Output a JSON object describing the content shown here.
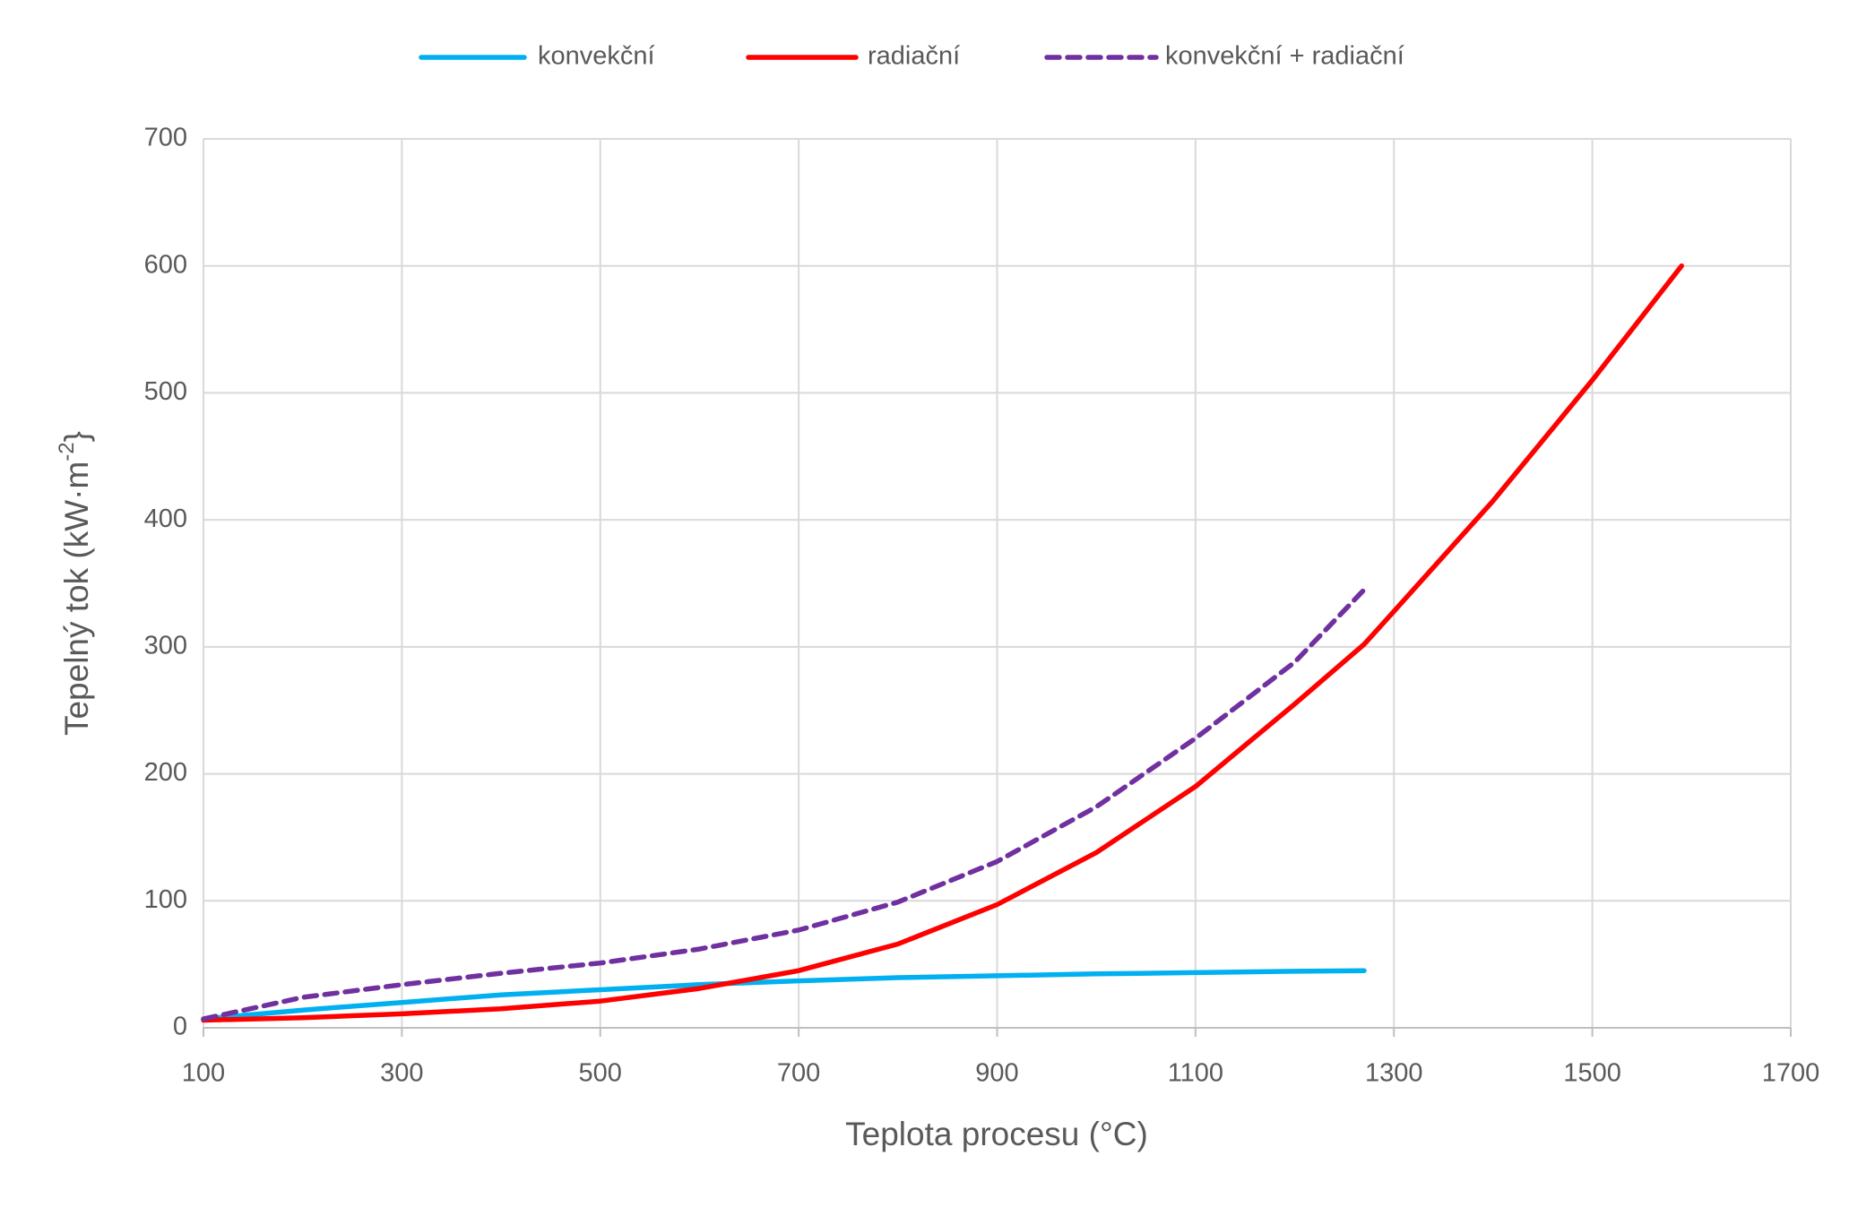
{
  "chart_data": {
    "type": "line",
    "x_label": "Teplota procesu (°C)",
    "y_label": {
      "text": "Tepelný tok (kW·m",
      "superscript": "-2",
      "suffix": "}"
    },
    "x": [
      100,
      200,
      300,
      400,
      500,
      600,
      700,
      800,
      900,
      1000,
      1100,
      1200,
      1270,
      1300,
      1400,
      1500,
      1590
    ],
    "series": [
      {
        "name": "konvekční",
        "color": "#00b0f0",
        "dash": false,
        "values": [
          7,
          14,
          20,
          26,
          30,
          34,
          37,
          39.5,
          41,
          42.5,
          43.5,
          44.5,
          45,
          null,
          null,
          null,
          null
        ]
      },
      {
        "name": "radiační",
        "color": "#ff0000",
        "dash": false,
        "values": [
          6,
          8,
          11,
          15,
          21,
          31,
          45,
          66,
          97,
          138,
          190,
          255,
          302,
          328,
          415,
          510,
          600
        ]
      },
      {
        "name": "konvekční + radiační",
        "color": "#7030a0",
        "dash": true,
        "values": [
          7,
          24,
          34,
          43,
          51,
          62,
          77,
          99,
          131,
          174,
          228,
          288,
          345,
          null,
          null,
          null,
          null
        ]
      }
    ],
    "xlim": [
      100,
      1700
    ],
    "xticks": [
      100,
      300,
      500,
      700,
      900,
      1100,
      1300,
      1500,
      1700
    ],
    "ylim": [
      0,
      700
    ],
    "yticks": [
      0,
      100,
      200,
      300,
      400,
      500,
      600,
      700
    ],
    "grid": true,
    "legend": "top"
  }
}
